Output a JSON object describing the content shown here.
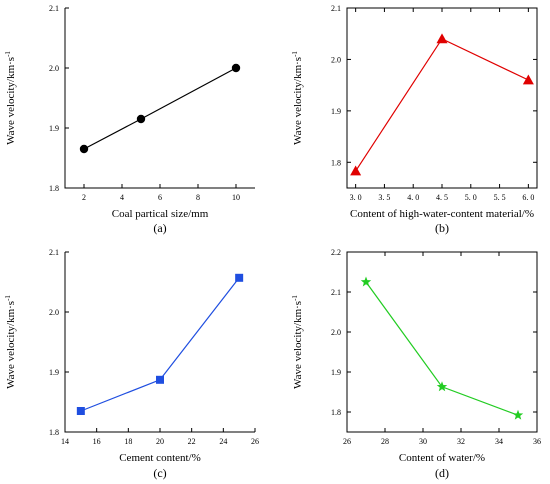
{
  "chart_data": [
    {
      "id": "a",
      "type": "line",
      "panel_label": "(a)",
      "xlabel": "Coal partical size/mm",
      "ylabel": "Wave velocity/km·s",
      "ylabel_sup": "-1",
      "x": [
        2,
        5,
        10
      ],
      "y": [
        1.865,
        1.915,
        2.0
      ],
      "xlim": [
        1,
        11
      ],
      "ylim": [
        1.8,
        2.1
      ],
      "xticks": [
        2,
        4,
        6,
        8,
        10
      ],
      "xtick_labels": [
        "2",
        "4",
        "6",
        "8",
        "10"
      ],
      "yticks": [
        1.8,
        1.9,
        2.0,
        2.1
      ],
      "ytick_labels": [
        "1.8",
        "1.9",
        "2.0",
        "2.1"
      ],
      "color": "#000000",
      "marker": "circle"
    },
    {
      "id": "b",
      "type": "line",
      "panel_label": "(b)",
      "xlabel": "Content of high-water-content material/%",
      "ylabel": "Wave velocity/km·s",
      "ylabel_sup": "-1",
      "x": [
        3.0,
        4.5,
        6.0
      ],
      "y": [
        1.783,
        2.04,
        1.96
      ],
      "xlim": [
        2.85,
        6.15
      ],
      "ylim": [
        1.75,
        2.1
      ],
      "xticks": [
        3.0,
        3.5,
        4.0,
        4.5,
        5.0,
        5.5,
        6.0
      ],
      "xtick_labels": [
        "3. 0",
        "3. 5",
        "4. 0",
        "4. 5",
        "5. 0",
        "5. 5",
        "6. 0"
      ],
      "yticks": [
        1.8,
        1.9,
        2.0,
        2.1
      ],
      "ytick_labels": [
        "1.8",
        "1.9",
        "2.0",
        "2.1"
      ],
      "color": "#e00000",
      "marker": "triangle"
    },
    {
      "id": "c",
      "type": "line",
      "panel_label": "(c)",
      "xlabel": "Cement content/%",
      "ylabel": "Wave velocity/km·s",
      "ylabel_sup": "-1",
      "x": [
        15,
        20,
        25
      ],
      "y": [
        1.835,
        1.887,
        2.057
      ],
      "xlim": [
        14,
        26
      ],
      "ylim": [
        1.8,
        2.1
      ],
      "xticks": [
        14,
        16,
        18,
        20,
        22,
        24,
        26
      ],
      "xtick_labels": [
        "14",
        "16",
        "18",
        "20",
        "22",
        "24",
        "26"
      ],
      "yticks": [
        1.8,
        1.9,
        2.0,
        2.1
      ],
      "ytick_labels": [
        "1.8",
        "1.9",
        "2.0",
        "2.1"
      ],
      "color": "#1f4ee0",
      "marker": "square"
    },
    {
      "id": "d",
      "type": "line",
      "panel_label": "(d)",
      "xlabel": "Content of water/%",
      "ylabel": "Wave velocity/km·s",
      "ylabel_sup": "-1",
      "x": [
        27,
        31,
        35
      ],
      "y": [
        2.125,
        1.863,
        1.792
      ],
      "xlim": [
        26,
        36
      ],
      "ylim": [
        1.75,
        2.2
      ],
      "xticks": [
        26,
        28,
        30,
        32,
        34,
        36
      ],
      "xtick_labels": [
        "26",
        "28",
        "30",
        "32",
        "34",
        "36"
      ],
      "yticks": [
        1.8,
        1.9,
        2.0,
        2.1,
        2.2
      ],
      "ytick_labels": [
        "1.8",
        "1.9",
        "2.0",
        "2.1",
        "2.2"
      ],
      "color": "#22cc22",
      "marker": "star"
    }
  ]
}
